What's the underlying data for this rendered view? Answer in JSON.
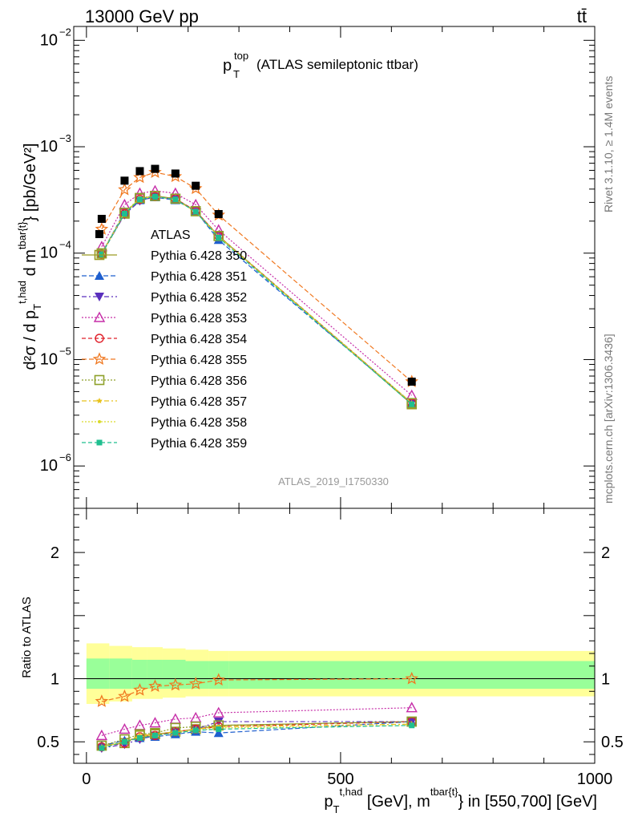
{
  "header": {
    "energy_label": "13000 GeV pp",
    "process_label": "tt̄"
  },
  "side_labels": {
    "rivet": "Rivet 3.1.10, ≥ 1.4M events",
    "mcplots": "mcplots.cern.ch [arXiv:1306.3436]"
  },
  "watermark": "ATLAS_2019_I1750330",
  "colors": {
    "band_yellow": "#ffff99",
    "band_green": "#99ff99"
  },
  "chart_data": [
    {
      "type": "scatter",
      "title_main": "p",
      "title_sup": "top",
      "title_sub": "T",
      "title_rest": "(ATLAS semileptonic ttbar)",
      "ylabel": "d²σ / d p_T^{t,had} d m^{tbar{t}} [pb/GeV²]",
      "y_scale": "log",
      "ylim": [
        4e-07,
        0.0135
      ],
      "xlim": [
        -25,
        1000
      ],
      "y_ticks": [
        {
          "value": 1e-06,
          "mant": "10",
          "exp": "−6"
        },
        {
          "value": 1e-05,
          "mant": "10",
          "exp": "−5"
        },
        {
          "value": 0.0001,
          "mant": "10",
          "exp": "−4"
        },
        {
          "value": 0.001,
          "mant": "10",
          "exp": "−3"
        },
        {
          "value": 0.01,
          "mant": "10",
          "exp": "−2"
        }
      ],
      "x": [
        30,
        75,
        105,
        135,
        175,
        215,
        260,
        640
      ],
      "series": [
        {
          "name": "ATLAS",
          "color": "#000000",
          "marker": "square-filled",
          "dash": "none",
          "values": [
            0.00021,
            0.00048,
            0.00059,
            0.00062,
            0.00056,
            0.00043,
            0.000233,
            6.2e-06
          ]
        },
        {
          "name": "Pythia 6.428 350",
          "color": "#9b9b22",
          "marker": "square-open",
          "dash": "solid",
          "values": [
            9.95e-05,
            0.000235,
            0.000325,
            0.000345,
            0.000325,
            0.000248,
            0.000145,
            3.8e-06
          ]
        },
        {
          "name": "Pythia 6.428 351",
          "color": "#1f5fcf",
          "marker": "triangle-up-filled",
          "dash": "6,3",
          "values": [
            9.9e-05,
            0.000245,
            0.000315,
            0.000335,
            0.000315,
            0.000248,
            0.000133,
            3.9e-06
          ]
        },
        {
          "name": "Pythia 6.428 352",
          "color": "#5a2fbd",
          "marker": "triangle-down-filled",
          "dash": "6,3,2,3",
          "values": [
            9.85e-05,
            0.00023,
            0.00031,
            0.00034,
            0.00032,
            0.00025,
            0.000143,
            3.9e-06
          ]
        },
        {
          "name": "Pythia 6.428 353",
          "color": "#c62ea8",
          "marker": "triangle-up-open",
          "dash": "2,2",
          "values": [
            0.000115,
            0.000285,
            0.000365,
            0.000385,
            0.000365,
            0.000285,
            0.000165,
            4.6e-06
          ]
        },
        {
          "name": "Pythia 6.428 354",
          "color": "#e0202a",
          "marker": "circle-open",
          "dash": "5,3",
          "values": [
            9.75e-05,
            0.000235,
            0.00032,
            0.00034,
            0.000325,
            0.00025,
            0.000145,
            3.9e-06
          ]
        },
        {
          "name": "Pythia 6.428 355",
          "color": "#f07820",
          "marker": "star-open",
          "dash": "6,3",
          "values": [
            0.000168,
            0.000395,
            0.000515,
            0.000575,
            0.000525,
            0.000405,
            0.000228,
            6.2e-06
          ]
        },
        {
          "name": "Pythia 6.428 356",
          "color": "#8ea12a",
          "marker": "square-open",
          "dash": "2,2",
          "values": [
            9.95e-05,
            0.00024,
            0.00033,
            0.000345,
            0.000325,
            0.000248,
            0.000145,
            3.9e-06
          ]
        },
        {
          "name": "Pythia 6.428 357",
          "color": "#e8c21a",
          "marker": "star-small",
          "dash": "6,3,2,3",
          "values": [
            9.85e-05,
            0.000238,
            0.000325,
            0.00034,
            0.00032,
            0.000245,
            0.000143,
            3.9e-06
          ]
        },
        {
          "name": "Pythia 6.428 358",
          "color": "#d9d92a",
          "marker": "dot",
          "dash": "2,2",
          "values": [
            9.9e-05,
            0.00024,
            0.000325,
            0.00034,
            0.00032,
            0.000245,
            0.000143,
            3.9e-06
          ]
        },
        {
          "name": "Pythia 6.428 359",
          "color": "#1fbf8f",
          "marker": "square-filled-small",
          "dash": "5,3",
          "values": [
            9.75e-05,
            0.000235,
            0.00032,
            0.00034,
            0.00032,
            0.000245,
            0.00014,
            3.8e-06
          ]
        }
      ]
    },
    {
      "type": "scatter",
      "ylabel": "Ratio to ATLAS",
      "xlabel": "p_T^{t,had} [GeV], m^{tbar{t}} in [550,700] [GeV]",
      "xlabel_parts": {
        "p": "p",
        "sub": "T",
        "sup": "t,had",
        "mid": " [GeV], m",
        "sup2": "tbar{t}",
        "rest": "} in [550,700] [GeV]"
      },
      "xlim": [
        -25,
        1000
      ],
      "ylim": [
        0.33,
        2.35
      ],
      "x_ticks": [
        0,
        500,
        1000
      ],
      "y_ticks": [
        0.5,
        1,
        2
      ],
      "bands": {
        "edges": [
          0,
          45,
          90,
          120,
          150,
          195,
          240,
          280,
          1000
        ],
        "yellow_low": [
          0.8,
          0.82,
          0.84,
          0.84,
          0.85,
          0.86,
          0.86,
          0.86
        ],
        "yellow_high": [
          1.28,
          1.26,
          1.25,
          1.25,
          1.24,
          1.23,
          1.22,
          1.22
        ],
        "green_low": [
          0.92,
          0.92,
          0.92,
          0.92,
          0.92,
          0.92,
          0.92,
          0.92
        ],
        "green_high": [
          1.16,
          1.16,
          1.15,
          1.15,
          1.15,
          1.14,
          1.14,
          1.14
        ]
      },
      "x": [
        30,
        75,
        105,
        135,
        175,
        215,
        260,
        640
      ],
      "series": [
        {
          "name": "Pythia 6.428 350",
          "values": [
            0.47,
            0.49,
            0.55,
            0.56,
            0.58,
            0.6,
            0.63,
            0.66
          ]
        },
        {
          "name": "Pythia 6.428 351",
          "values": [
            0.47,
            0.51,
            0.53,
            0.54,
            0.56,
            0.58,
            0.57,
            0.66
          ]
        },
        {
          "name": "Pythia 6.428 352",
          "values": [
            0.45,
            0.48,
            0.52,
            0.55,
            0.58,
            0.6,
            0.66,
            0.66
          ]
        },
        {
          "name": "Pythia 6.428 353",
          "values": [
            0.55,
            0.6,
            0.63,
            0.65,
            0.68,
            0.69,
            0.73,
            0.77
          ]
        },
        {
          "name": "Pythia 6.428 354",
          "values": [
            0.46,
            0.49,
            0.54,
            0.55,
            0.58,
            0.6,
            0.62,
            0.66
          ]
        },
        {
          "name": "Pythia 6.428 355",
          "values": [
            0.82,
            0.86,
            0.91,
            0.94,
            0.95,
            0.96,
            0.99,
            1.0
          ]
        },
        {
          "name": "Pythia 6.428 356",
          "values": [
            0.47,
            0.52,
            0.56,
            0.57,
            0.61,
            0.62,
            0.63,
            0.66
          ]
        },
        {
          "name": "Pythia 6.428 357",
          "values": [
            0.46,
            0.5,
            0.55,
            0.56,
            0.58,
            0.6,
            0.62,
            0.64
          ]
        },
        {
          "name": "Pythia 6.428 358",
          "values": [
            0.46,
            0.5,
            0.54,
            0.55,
            0.57,
            0.59,
            0.61,
            0.63
          ]
        },
        {
          "name": "Pythia 6.428 359",
          "values": [
            0.45,
            0.5,
            0.53,
            0.55,
            0.57,
            0.59,
            0.6,
            0.63
          ]
        }
      ]
    }
  ]
}
